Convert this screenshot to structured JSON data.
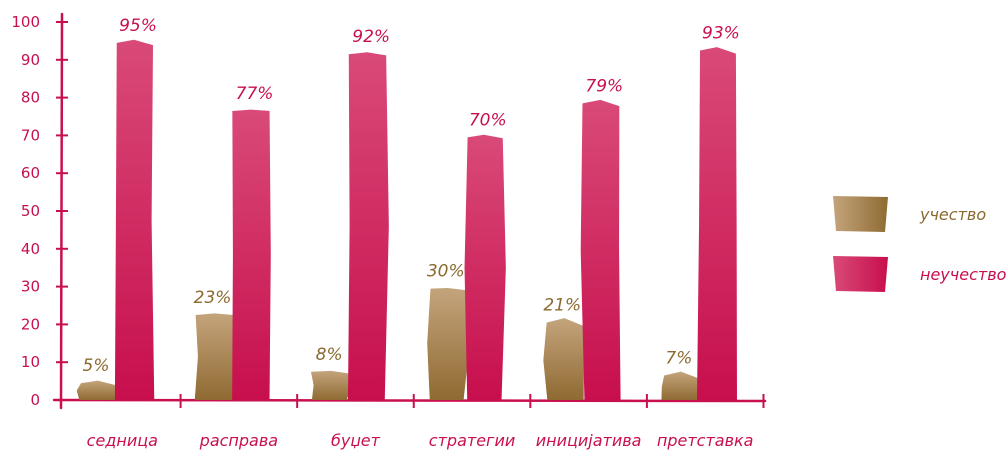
{
  "chart_data": {
    "type": "bar",
    "categories": [
      "седница",
      "расправа",
      "буџет",
      "стратегии",
      "иницијатива",
      "претставка"
    ],
    "series": [
      {
        "name": "учество",
        "values": [
          5,
          23,
          8,
          30,
          21,
          7
        ],
        "labels": [
          "5%",
          "23%",
          "8%",
          "30%",
          "21%",
          "7%"
        ]
      },
      {
        "name": "неучество",
        "values": [
          95,
          77,
          92,
          70,
          79,
          93
        ],
        "labels": [
          "95%",
          "77%",
          "92%",
          "70%",
          "79%",
          "93%"
        ]
      }
    ],
    "ylim": [
      0,
      100
    ],
    "yticks": [
      "0",
      "10",
      "20",
      "30",
      "40",
      "50",
      "60",
      "70",
      "80",
      "90",
      "100"
    ],
    "legend_position": "right",
    "colors": {
      "series": [
        "#a8844f",
        "#cf1b5c"
      ],
      "series_light": [
        "#c4a47c",
        "#d94a78"
      ],
      "axis": "#c8104f",
      "label_text": [
        "#8a6a2f",
        "#c8104f"
      ]
    }
  }
}
